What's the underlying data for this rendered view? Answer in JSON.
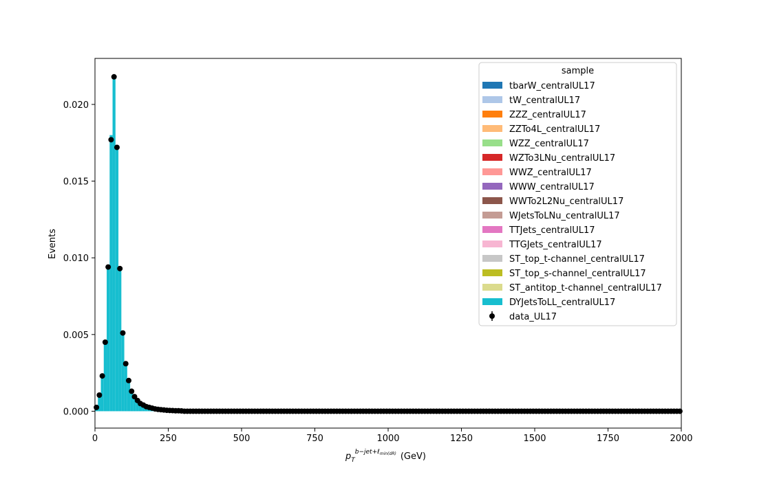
{
  "chart_data": {
    "type": "bar",
    "title": "",
    "ylabel": "Events",
    "xlabel": {
      "base": "p",
      "sub": "T",
      "sup": "b−jet+ℓ",
      "supsub": "min(dR)",
      "unit": "(GeV)"
    },
    "xlim": [
      0,
      2000
    ],
    "ylim": [
      -0.0011,
      0.023
    ],
    "x_ticks": [
      0,
      250,
      500,
      750,
      1000,
      1250,
      1500,
      1750,
      2000
    ],
    "x_tick_labels": [
      "0",
      "250",
      "500",
      "750",
      "1000",
      "1250",
      "1500",
      "1750",
      "2000"
    ],
    "y_ticks": [
      0.0,
      0.005,
      0.01,
      0.015,
      0.02
    ],
    "y_tick_labels": [
      "0.000",
      "0.005",
      "0.010",
      "0.015",
      "0.020"
    ],
    "bin_width": 10,
    "stacked_mc": {
      "name": "DYJetsToLL_centralUL17",
      "color": "#17becf",
      "bin_left_edges": [
        0,
        10,
        20,
        30,
        40,
        50,
        60,
        70,
        80,
        90,
        100,
        110,
        120,
        130,
        140,
        150,
        160,
        170,
        180,
        190,
        200,
        210,
        220,
        230,
        240,
        250,
        260,
        270,
        280,
        290
      ],
      "values": [
        0.0002,
        0.001,
        0.0022,
        0.0045,
        0.0093,
        0.018,
        0.0218,
        0.0171,
        0.0092,
        0.005,
        0.003,
        0.0019,
        0.0012,
        0.0008,
        0.0006,
        0.0004,
        0.0003,
        0.00025,
        0.0002,
        0.00015,
        0.00012,
        0.0001,
        8e-05,
        6e-05,
        5e-05,
        4e-05,
        3e-05,
        3e-05,
        2e-05,
        1e-05
      ]
    },
    "data_series": {
      "name": "data_UL17",
      "color": "#000000",
      "x": [
        5,
        15,
        25,
        35,
        45,
        55,
        65,
        75,
        85,
        95,
        105,
        115,
        125,
        135,
        145,
        155,
        165,
        175,
        185,
        195,
        205,
        215,
        225,
        235,
        245,
        255,
        265,
        275,
        285,
        295
      ],
      "y": [
        0.00025,
        0.00105,
        0.0023,
        0.0045,
        0.0094,
        0.0177,
        0.0218,
        0.0172,
        0.0093,
        0.0051,
        0.0031,
        0.002,
        0.0013,
        0.00095,
        0.0007,
        0.0005,
        0.0004,
        0.0003,
        0.00025,
        0.0002,
        0.00015,
        0.00012,
        0.0001,
        8e-05,
        6e-05,
        5e-05,
        4e-05,
        3e-05,
        3e-05,
        2e-05
      ],
      "zero_tail_from": 305,
      "zero_tail_to": 1995,
      "zero_tail_step": 10
    },
    "legend": {
      "title": "sample",
      "position": "top-right",
      "entries": [
        {
          "label": "tbarW_centralUL17",
          "color": "#1f77b4"
        },
        {
          "label": "tW_centralUL17",
          "color": "#aec7e8"
        },
        {
          "label": "ZZZ_centralUL17",
          "color": "#ff7f0e"
        },
        {
          "label": "ZZTo4L_centralUL17",
          "color": "#ffbb78"
        },
        {
          "label": "WZZ_centralUL17",
          "color": "#98df8a"
        },
        {
          "label": "WZTo3LNu_centralUL17",
          "color": "#d62728"
        },
        {
          "label": "WWZ_centralUL17",
          "color": "#ff9896"
        },
        {
          "label": "WWW_centralUL17",
          "color": "#9467bd"
        },
        {
          "label": "WWTo2L2Nu_centralUL17",
          "color": "#8c564b"
        },
        {
          "label": "WJetsToLNu_centralUL17",
          "color": "#c49c94"
        },
        {
          "label": "TTJets_centralUL17",
          "color": "#e377c2"
        },
        {
          "label": "TTGJets_centralUL17",
          "color": "#f7b6d2"
        },
        {
          "label": "ST_top_t-channel_centralUL17",
          "color": "#c7c7c7"
        },
        {
          "label": "ST_top_s-channel_centralUL17",
          "color": "#bcbd22"
        },
        {
          "label": "ST_antitop_t-channel_centralUL17",
          "color": "#dbdb8d"
        },
        {
          "label": "DYJetsToLL_centralUL17",
          "color": "#17becf"
        },
        {
          "label": "data_UL17",
          "color": "#000000",
          "marker": "point"
        }
      ]
    },
    "grid": false
  }
}
